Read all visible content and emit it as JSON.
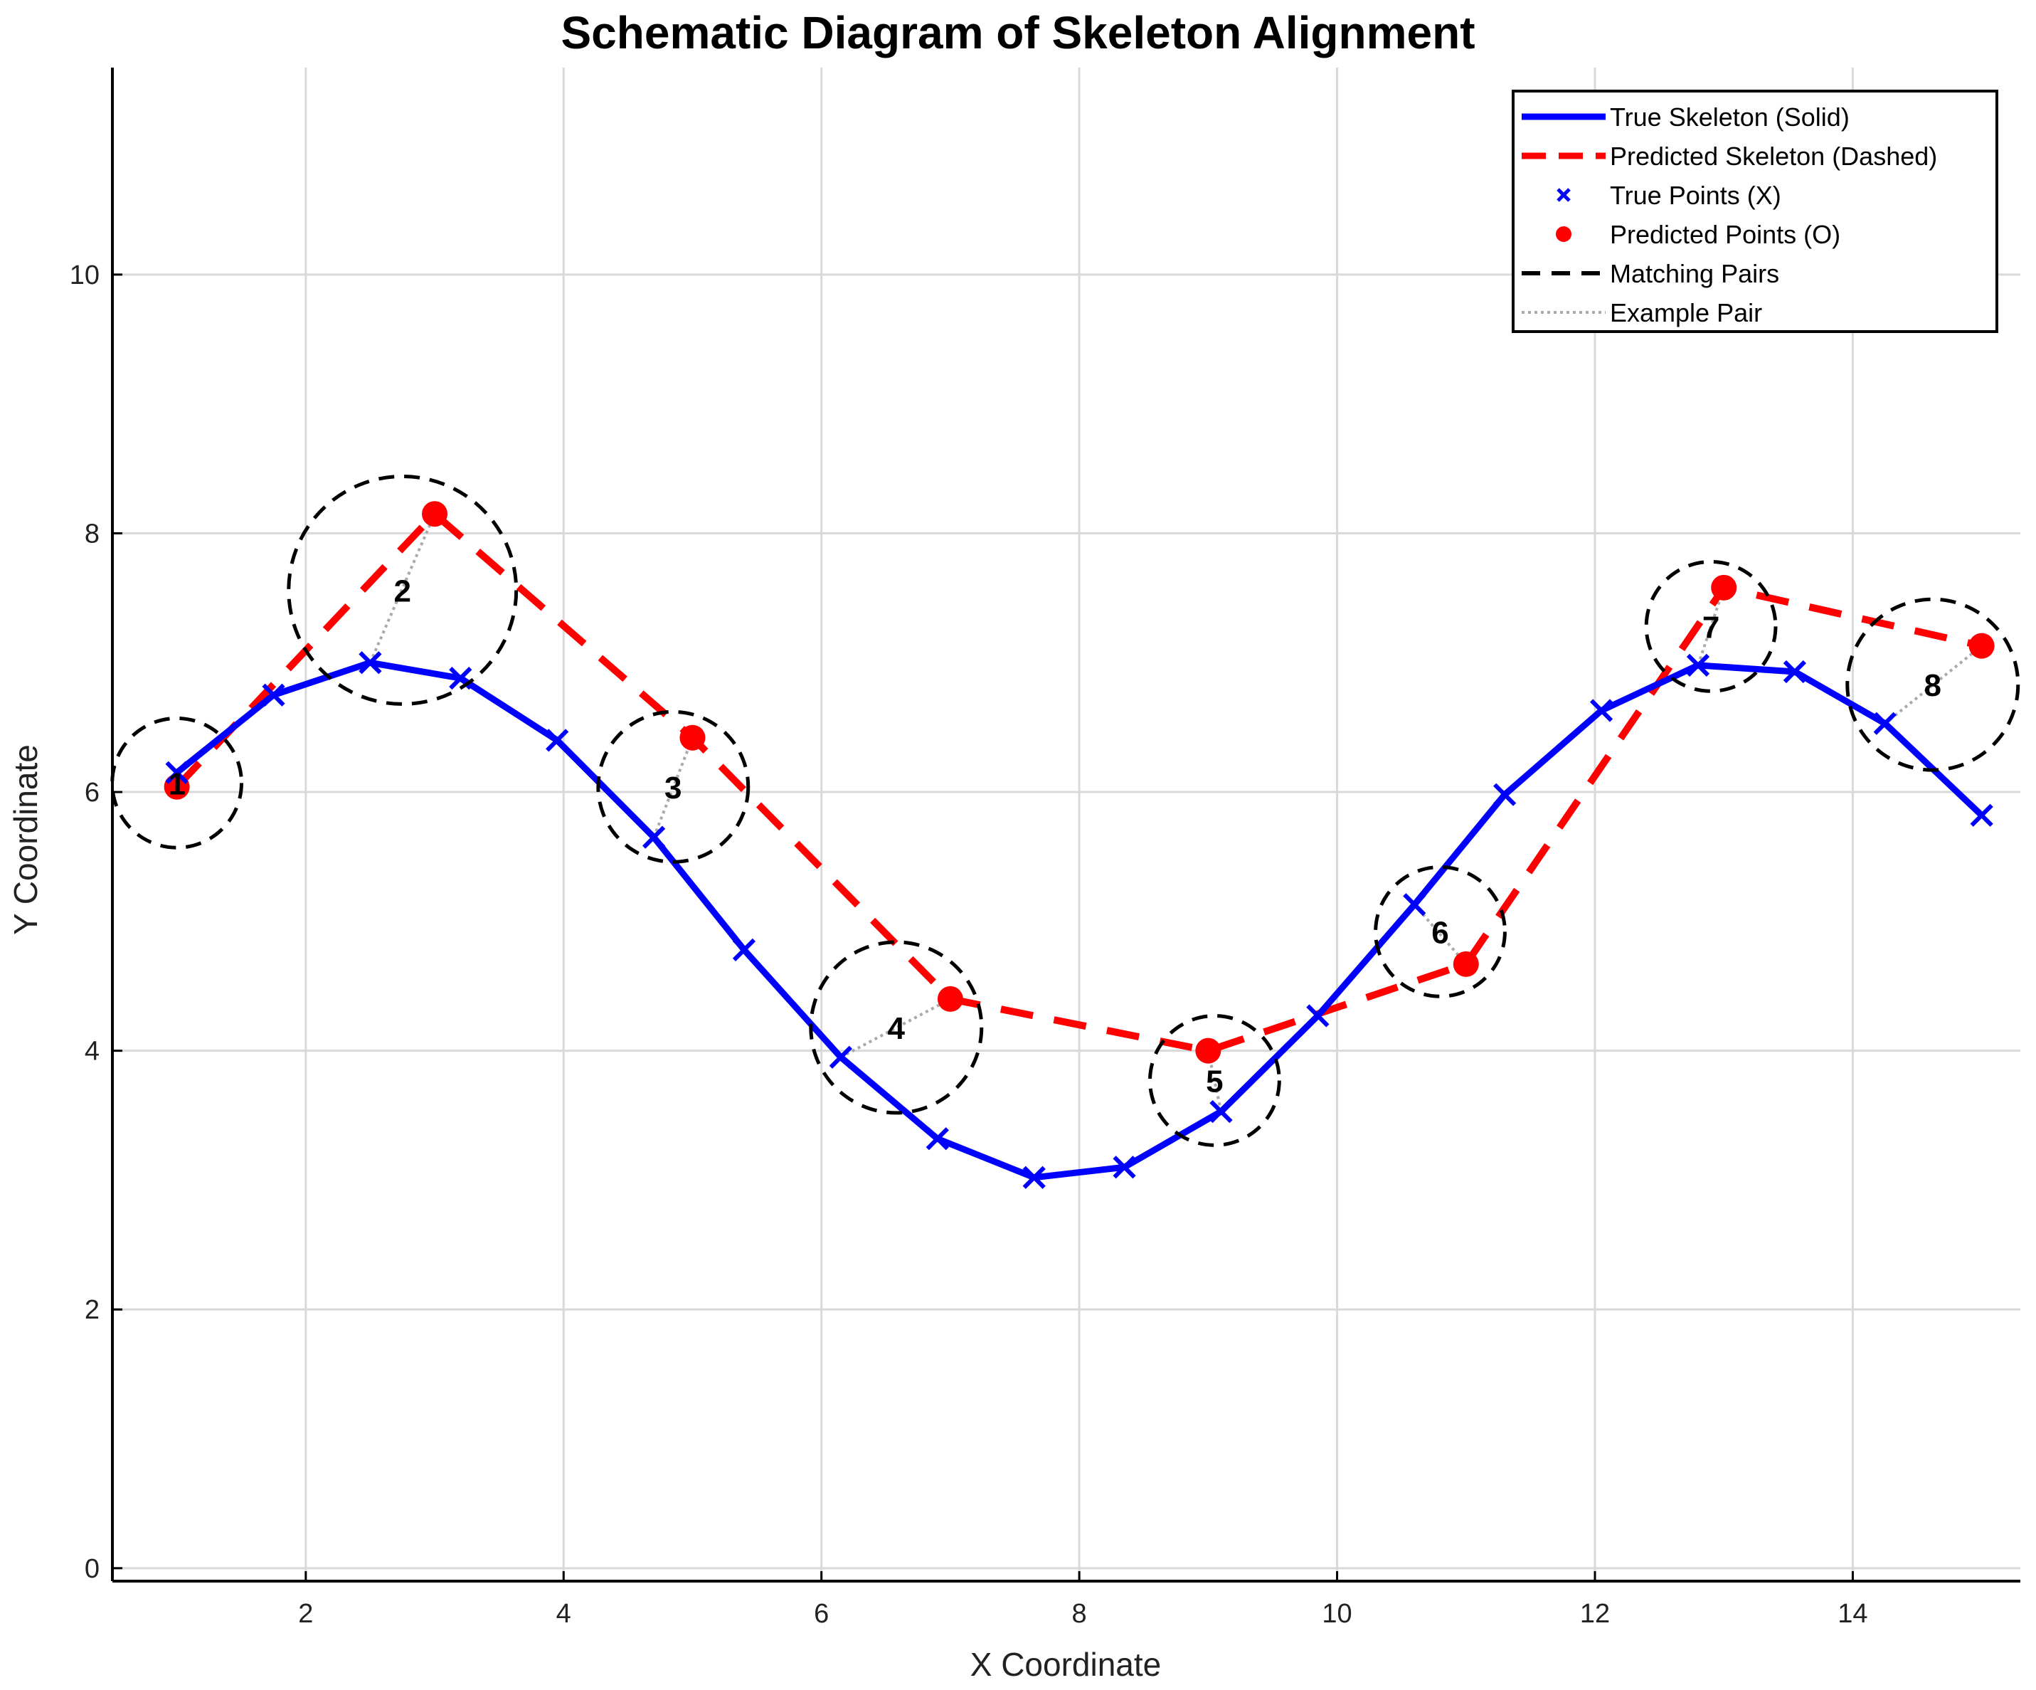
{
  "chart_data": {
    "type": "line",
    "title": "Schematic Diagram of Skeleton Alignment",
    "xlabel": "X Coordinate",
    "ylabel": "Y Coordinate",
    "xlim": [
      0.5,
      15.3
    ],
    "ylim": [
      -0.1,
      11.6
    ],
    "xticks": [
      2,
      4,
      6,
      8,
      10,
      12,
      14
    ],
    "yticks": [
      0,
      2,
      4,
      6,
      8,
      10
    ],
    "grid": true,
    "legend_position": "top-right",
    "colors": {
      "true": "#0000ff",
      "predicted": "#ff0000",
      "circle": "#000000",
      "pair": "#aaaaaa",
      "grid": "#d9d9d9"
    },
    "series": [
      {
        "name": "True Skeleton (Solid)",
        "style": "solid",
        "x": [
          1.0,
          1.75,
          2.5,
          3.2,
          3.95,
          4.7,
          5.4,
          6.15,
          6.9,
          7.65,
          8.35,
          9.1,
          9.85,
          10.6,
          11.3,
          12.05,
          12.8,
          13.55,
          14.25,
          15.0
        ],
        "y": [
          6.15,
          6.75,
          7.0,
          6.88,
          6.4,
          5.65,
          4.78,
          3.95,
          3.32,
          3.02,
          3.1,
          3.53,
          4.27,
          5.13,
          5.98,
          6.63,
          6.98,
          6.93,
          6.53,
          5.82
        ]
      },
      {
        "name": "Predicted Skeleton (Dashed)",
        "style": "dashed",
        "x": [
          1.0,
          3.0,
          5.0,
          7.0,
          9.0,
          11.0,
          13.0,
          15.0
        ],
        "y": [
          6.04,
          8.15,
          6.42,
          4.4,
          4.0,
          4.67,
          7.58,
          7.13
        ]
      }
    ],
    "matching_pairs": [
      {
        "label": "1",
        "true_x": 1.0,
        "true_y": 6.15,
        "pred_x": 1.0,
        "pred_y": 6.04,
        "center_x": 1.0,
        "center_y": 6.07,
        "radius": 0.5
      },
      {
        "label": "2",
        "true_x": 2.5,
        "true_y": 7.0,
        "pred_x": 3.0,
        "pred_y": 8.15,
        "center_x": 2.75,
        "center_y": 7.56,
        "radius": 0.88
      },
      {
        "label": "3",
        "true_x": 4.7,
        "true_y": 5.65,
        "pred_x": 5.0,
        "pred_y": 6.42,
        "center_x": 4.85,
        "center_y": 6.04,
        "radius": 0.58
      },
      {
        "label": "4",
        "true_x": 6.15,
        "true_y": 3.95,
        "pred_x": 7.0,
        "pred_y": 4.4,
        "center_x": 6.58,
        "center_y": 4.18,
        "radius": 0.66
      },
      {
        "label": "5",
        "true_x": 9.1,
        "true_y": 3.53,
        "pred_x": 9.0,
        "pred_y": 4.0,
        "center_x": 9.05,
        "center_y": 3.77,
        "radius": 0.5
      },
      {
        "label": "6",
        "true_x": 10.6,
        "true_y": 5.13,
        "pred_x": 11.0,
        "pred_y": 4.67,
        "center_x": 10.8,
        "center_y": 4.92,
        "radius": 0.5
      },
      {
        "label": "7",
        "true_x": 12.8,
        "true_y": 6.98,
        "pred_x": 13.0,
        "pred_y": 7.58,
        "center_x": 12.9,
        "center_y": 7.28,
        "radius": 0.5
      },
      {
        "label": "8",
        "true_x": 14.25,
        "true_y": 6.53,
        "pred_x": 15.0,
        "pred_y": 7.13,
        "center_x": 14.62,
        "center_y": 6.83,
        "radius": 0.66
      }
    ],
    "legend": [
      {
        "label": "True Skeleton (Solid)",
        "kind": "solid-line"
      },
      {
        "label": "Predicted Skeleton (Dashed)",
        "kind": "dashed-line"
      },
      {
        "label": "True Points (X)",
        "kind": "x-marker"
      },
      {
        "label": "Predicted Points (O)",
        "kind": "o-marker"
      },
      {
        "label": "Matching Pairs",
        "kind": "black-dashed"
      },
      {
        "label": "Example Pair",
        "kind": "gray-dotted"
      }
    ]
  }
}
